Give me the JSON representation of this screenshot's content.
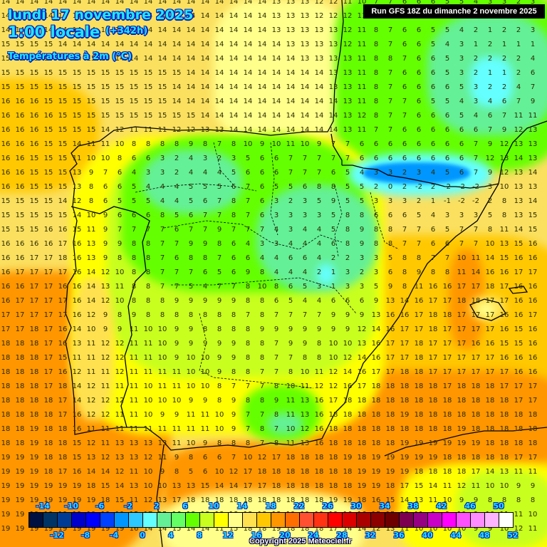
{
  "header": {
    "date": "lundi 17 novembre 2025",
    "time": "1:00 locale",
    "offset": "(+342h)",
    "parameter": "Températures à 2m (°C)",
    "run": "Run GFS 18Z du dimanche 2 novembre 2025"
  },
  "footer": {
    "copyright": "Copyright 2025 Meteociel.fr"
  },
  "legend": {
    "colors": [
      "#001040",
      "#003466",
      "#003c96",
      "#0000cd",
      "#0000ff",
      "#0040ff",
      "#0096ff",
      "#2dc8ff",
      "#64ffff",
      "#64f096",
      "#64ff64",
      "#64ff00",
      "#c8ff1e",
      "#ffff00",
      "#ffff8c",
      "#ffe150",
      "#ffc800",
      "#ff9600",
      "#ff6e00",
      "#ff5032",
      "#ff3214",
      "#ff0000",
      "#dc0000",
      "#aa0000",
      "#8c0000",
      "#6e0000",
      "#7d0050",
      "#960082",
      "#c800c8",
      "#ff00ff",
      "#ff50ff",
      "#ff8cff",
      "#ffb4ff",
      "#ffffff"
    ],
    "top_labels": [
      "-14",
      "-10",
      "-6",
      "-2",
      "2",
      "6",
      "10",
      "14",
      "18",
      "22",
      "26",
      "30",
      "34",
      "38",
      "42",
      "46",
      "50"
    ],
    "bottom_labels": [
      "-12",
      "-8",
      "-4",
      "0",
      "4",
      "8",
      "12",
      "16",
      "20",
      "24",
      "28",
      "32",
      "36",
      "40",
      "44",
      "48",
      "52"
    ]
  },
  "grid_rows": [
    "14 14 14 14 14 14 14 14 14 14 14 14 14 14 14 14 14 14 14 13 13 13 12 12 11 10 7 7 6 6 6 5 5 4 3 3 2 3",
    "14 14 14 14 14 14 14 14 14 14 14 14 14 14 14 14 14 14 14 13 13 13 12 12 12 11 7 6 6 7 6 5 4 4 3 4 2 3",
    "14 14 14 14 14 14 14 14 14 14 14 14 14 14 14 14 14 14 14 13 13 13 13 13 12 11 8 7 6 6 5 5 4 2 1 2 2 3",
    "15 15 15 15 14 14 14 14 14 14 14 14 14 14 14 14 14 14 14 14 13 13 13 13 12 11 8 7 6 6 5 4 3 1 2 1 1 1",
    "15 15 15 15 15 14 15 15 14 14 14 14 14 14 14 14 14 14 14 14 14 13 13 13 13 11 8 8 7 6 6 5 3 2 2 2 2 4",
    "15 15 15 15 15 15 15 15 15 15 15 15 15 14 14 14 14 14 14 14 14 14 14 13 13 11 8 7 6 6 6 5 3 2 1 1 2 6",
    "15 15 15 15 15 15 15 15 15 15 15 15 14 14 14 14 14 14 14 14 14 14 14 13 13 11 8 7 6 6 6 6 5 3 2 2 4 7",
    "16 16 16 15 15 15 15 15 15 15 15 15 14 14 14 14 14 14 14 14 14 14 14 14 13 11 8 7 7 6 5 5 4 3 4 6 7 9",
    "16 16 16 16 15 15 15 15 15 15 15 15 15 15 14 14 14 14 14 14 14 14 14 14 13 12 8 7 7 6 6 6 5 4 6 7 11 11",
    "16 16 16 15 15 15 15 14 12 11 11 11 12 12 13 13 14 14 14 14 14 14 14 14 13 11 7 7 6 6 6 6 6 6 7 9 12 13",
    "16 16 16 15 15 14 11 11 10 8 8 8 8 9 8 7 8 10 9 10 11 10 9 7 7 6 6 6 6 6 6 6 6 7 9 12 13 13",
    "16 16 15 15 15 11 10 10 8 6 6 3 2 4 3 2 3 5 6 6 7 7 7 7 7 6 6 6 6 6 6 6 6 7 12 13 14 13",
    "16 16 15 15 15 13 9 7 6 4 3 3 2 4 4 4 5 6 6 6 7 7 7 6 5 4 3 3 2 3 4 5 6 7 9 12 13 14",
    "16 16 15 15 15 13 8 6 6 5 4 4 4 5 5 5 6 7 6 5 5 6 8 8 5 5 2 0 2 -2 2 -2 -2 -2 3 10 13 13",
    "15 15 15 15 14 12 8 6 5 5 5 4 4 5 6 7 8 7 6 3 2 3 5 9 5 5 3 3 3 2 1 -1 -2 -2 2 8 13 14",
    "15 15 15 15 15 14 10 9 6 6 6 8 5 6 7 7 8 7 6 3 3 3 3 5 8 8 6 6 6 5 4 3 3 3 5 8 13 15",
    "15 15 15 16 16 15 11 9 7 7 7 7 6 7 7 9 7 7 7 4 3 4 4 5 8 9 8 8 7 7 6 5 7 7 8 11 14 15",
    "16 16 16 16 17 16 13 9 9 8 8 7 7 9 9 8 6 4 3 3 4 4 4 6 8 9 8 8 7 7 6 6 7 7 10 13 15 16",
    "16 16 17 17 18 16 13 9 8 8 8 7 6 8 8 7 6 6 4 4 6 6 4 2 2 3 3 5 8 8 7 7 10 11 14 15 16 16",
    "16 17 17 17 17 16 14 12 10 8 8 7 7 7 6 5 6 9 8 4 4 4 2 1 3 2 3 6 8 9 8 8 11 14 16 16 17 17",
    "16 16 17 17 16 16 14 13 11 8 8 7 7 5 4 7 7 8 10 8 6 5 3 1 3 3 5 9 8 11 16 16 17 17 18 17 16 16",
    "16 17 17 17 17 16 14 12 10 8 8 8 9 9 9 9 9 8 8 6 5 4 4 6 6 6 9 13 14 16 17 17 18 18 17 17 16 16",
    "17 17 17 17 17 16 12 9 8 9 8 8 8 8 8 8 8 7 8 7 7 7 7 9 9 9 13 16 16 17 18 18 17 17 17 16 16 17",
    "17 17 18 17 16 14 10 9 9 11 10 10 9 9 8 8 8 8 9 9 9 9 9 9 9 12 14 16 17 17 18 17 17 17 17 16 15 16",
    "18 18 18 17 16 13 11 12 12 11 11 10 9 9 9 9 9 8 8 7 9 9 8 10 10 13 16 17 17 18 17 17 17 16 16 15 15 16",
    "18 18 18 17 15 11 11 12 12 11 11 10 9 10 10 9 9 8 8 7 7 8 8 10 12 14 16 17 17 18 17 17 17 17 17 16 16 16",
    "18 18 18 17 16 12 11 11 12 11 11 11 11 10 10 9 8 8 7 7 8 10 11 12 14 16 17 17 18 18 17 17 17 17 17 17 16 16",
    "18 18 18 17 18 14 12 11 11 11 10 11 11 10 10 8 7 7 7 8 10 11 12 12 16 17 18 18 18 18 18 17 18 18 18 17 17 17",
    "18 18 18 18 17 14 12 12 12 11 10 10 10 9 9 8 9 8 8 9 11 13 16 17 18 18 18 18 18 18 18 18 18 18 18 18 17 17",
    "18 18 18 18 17 16 12 12 11 11 10 9 9 11 11 10 9 7 7 8 11 13 16 18 18 18 18 18 19 18 18 18 18 18 18 18 18 18",
    "18 18 19 18 18 16 11 11 11 11 11 11 11 11 11 10 9 7 8 7 10 12 16 18 18 18 18 18 18 18 18 18 19 18 18 18 18 18",
    "18 18 19 18 18 15 12 11 13 13 13 13 11 10 9 8 8 8 7 8 11 13 16 18 18 18 18 18 19 19 19 19 19 19 18 18 18 18",
    "19 19 19 18 18 15 13 12 13 13 12 11 9 8 6 6 7 10 12 17 18 18 18 18 19 18 19 19 19 19 19 18 18 18 18 18 17 17",
    "19 19 19 18 17 16 14 14 12 11 10 9 8 5 6 10 12 17 18 18 18 18 18 18 18 19 19 19 19 18 18 18 18 17 14 13 11 11",
    "19 19 19 19 19 19 18 15 14 13 10 10 13 13 15 14 14 17 17 18 18 18 18 18 18 19 19 18 17 15 14 11 12 11 10 10 9 9",
    "19 19 19 19 19 19 19 18 15 11 12 13 17 18 18 18 18 18 18 18 18 18 18 19 19 18 16 15 14 13 11 10 9 9 8 8 8 8",
    "19 19 19 19 19 19 19 19 19 15 17 15 16 18 18 18 18 18 18 18 19 19 19 19 16 16 15 15 13 11 9 9 10 9 10 11 11 10",
    "19 19 19 19 19 19 19 19 19 16 14 14 15 14 14 11 15 18 18 19 18 18 18 17 14 14 12 13 11 10 10 10 10 9 9 10 12 11"
  ]
}
